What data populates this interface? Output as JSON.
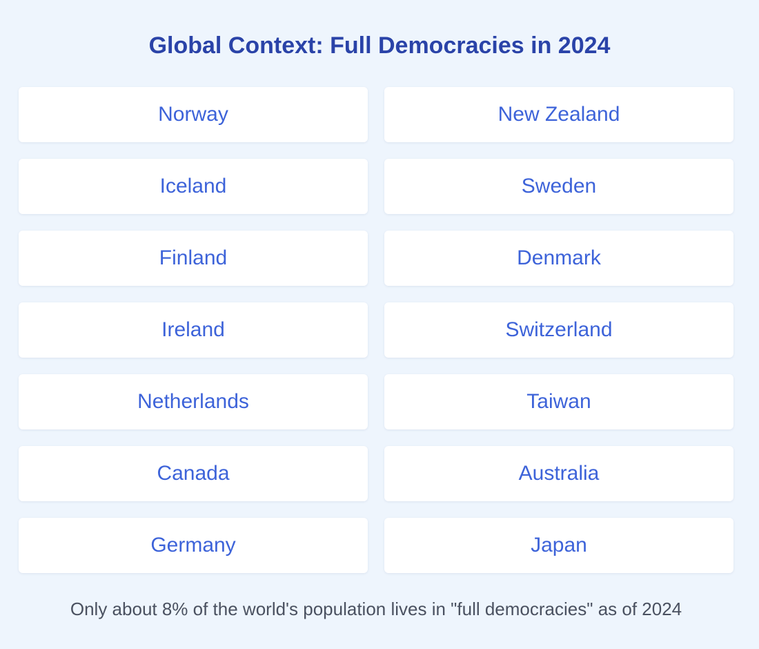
{
  "title": "Global Context: Full Democracies in 2024",
  "countries": [
    "Norway",
    "New Zealand",
    "Iceland",
    "Sweden",
    "Finland",
    "Denmark",
    "Ireland",
    "Switzerland",
    "Netherlands",
    "Taiwan",
    "Canada",
    "Australia",
    "Germany",
    "Japan"
  ],
  "footnote": "Only about 8% of the world's population lives in \"full democracies\" as of 2024",
  "colors": {
    "background": "#eef5fd",
    "title": "#2a43a8",
    "card_text": "#3d63d9",
    "footnote": "#4a5160"
  }
}
